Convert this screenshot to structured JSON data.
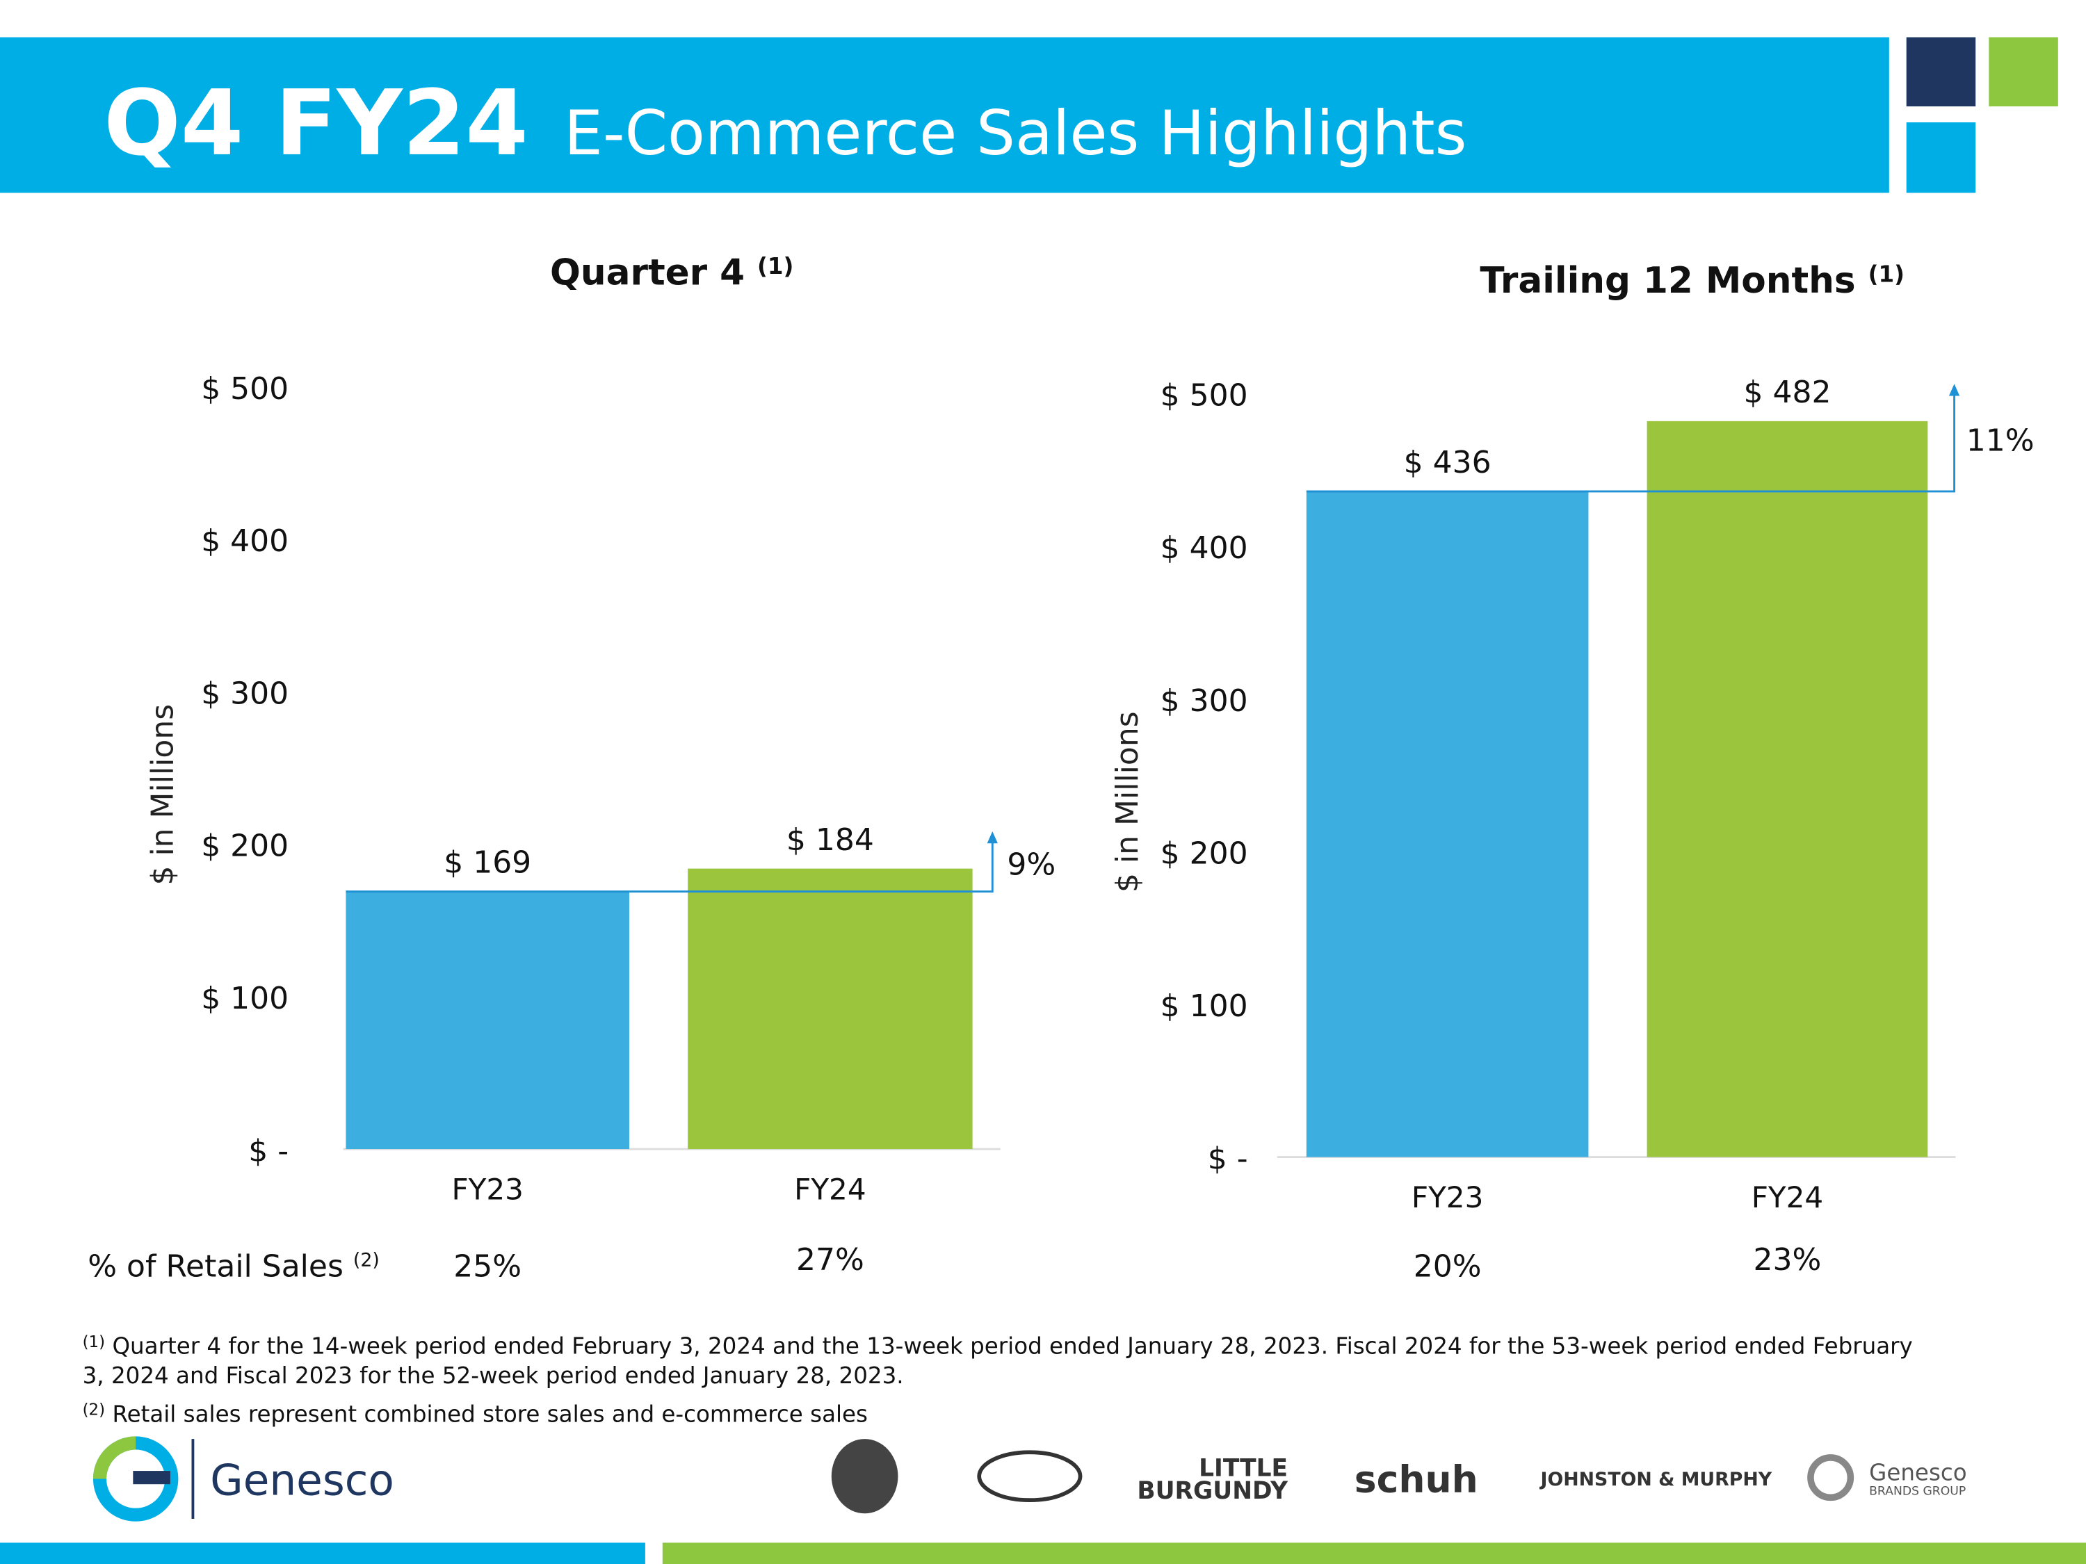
{
  "header": {
    "title_bold": "Q4 FY24",
    "title": "E-Commerce Sales Highlights"
  },
  "chart_data": [
    {
      "type": "bar",
      "title": "Quarter 4",
      "title_note": "(1)",
      "y_label": "$ in Millions",
      "categories": [
        "FY23",
        "FY24"
      ],
      "values": [
        169,
        184
      ],
      "value_labels": [
        "$ 169",
        "$ 184"
      ],
      "colors": [
        "#3daee0",
        "#9bc53d"
      ],
      "ylim": [
        0,
        500
      ],
      "yticks": [
        {
          "value": 0,
          "label": "$ -"
        },
        {
          "value": 100,
          "label": "$ 100"
        },
        {
          "value": 200,
          "label": "$ 200"
        },
        {
          "value": 300,
          "label": "$ 300"
        },
        {
          "value": 400,
          "label": "$ 400"
        },
        {
          "value": 500,
          "label": "$ 500"
        }
      ],
      "growth_label": "9%",
      "retail_share": [
        "25%",
        "27%"
      ]
    },
    {
      "type": "bar",
      "title": "Trailing 12 Months",
      "title_note": "(1)",
      "y_label": "$ in Millions",
      "categories": [
        "FY23",
        "FY24"
      ],
      "values": [
        436,
        482
      ],
      "value_labels": [
        "$ 436",
        "$ 482"
      ],
      "colors": [
        "#3daee0",
        "#9bc53d"
      ],
      "ylim": [
        0,
        500
      ],
      "yticks": [
        {
          "value": 0,
          "label": "$ -"
        },
        {
          "value": 100,
          "label": "$ 100"
        },
        {
          "value": 200,
          "label": "$ 200"
        },
        {
          "value": 300,
          "label": "$ 300"
        },
        {
          "value": 400,
          "label": "$ 400"
        },
        {
          "value": 500,
          "label": "$ 500"
        }
      ],
      "growth_label": "11%",
      "retail_share": [
        "20%",
        "23%"
      ]
    }
  ],
  "retail_label": "% of Retail Sales",
  "retail_label_note": "(2)",
  "footnotes": [
    {
      "mark": "(1)",
      "lines": [
        "Quarter 4 for the 14-week period ended February 3, 2024 and the 13-week period ended January 28, 2023. Fiscal 2024 for the 53-week period ended February",
        "3, 2024 and Fiscal 2023 for the 52-week period ended January 28, 2023."
      ]
    },
    {
      "mark": "(2)",
      "lines": [
        "Retail sales represent combined store sales and e-commerce sales"
      ]
    }
  ],
  "footer": {
    "company": "Genesco",
    "brands": [
      "LITTLE",
      "BURGUNDY",
      "schuh",
      "JOHNSTON & MURPHY",
      "Genesco",
      "BRANDS GROUP"
    ]
  }
}
